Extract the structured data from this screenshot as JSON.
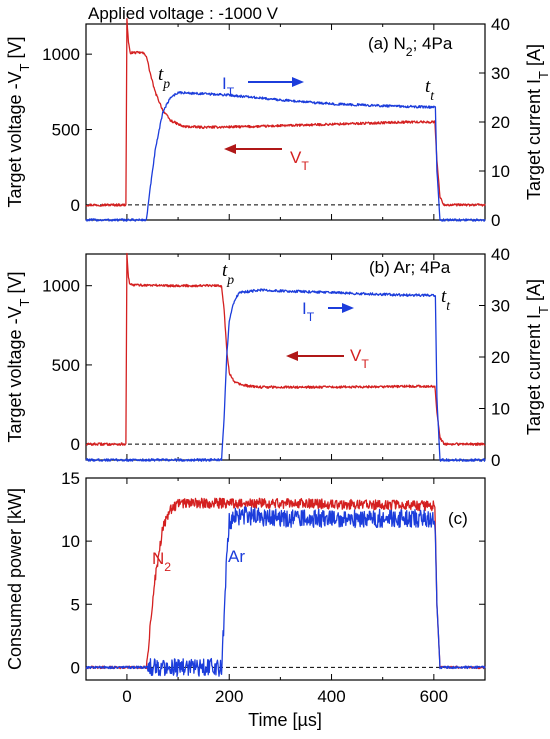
{
  "chart_data": [
    {
      "type": "line",
      "header": "Applied voltage : -1000 V",
      "panel_label": "(a) N",
      "panel_label_sub": "2",
      "panel_label_tail": "; 4Pa",
      "ylabel_left": "Target voltage -V",
      "ylabel_left_sub": "T",
      "ylabel_left_unit": " [V]",
      "ylabel_right": "Target current I",
      "ylabel_right_sub": "T",
      "ylabel_right_unit": " [A]",
      "xlim": [
        -80,
        700
      ],
      "ylim_left": [
        -100,
        1200
      ],
      "ylim_right": [
        0,
        40
      ],
      "y_ticks_left": [
        0,
        500,
        1000
      ],
      "y_ticks_right": [
        0,
        10,
        20,
        30,
        40
      ],
      "x_ticks": [
        0,
        200,
        400,
        600
      ],
      "baseline_dashed": 0,
      "annotations": {
        "tp": "t",
        "tp_sub": "p",
        "tt": "t",
        "tt_sub": "t",
        "it": "I",
        "it_sub": "T",
        "vt": "V",
        "vt_sub": "T"
      },
      "series": [
        {
          "name": "V_T",
          "axis": "left",
          "color": "#d42020",
          "x": [
            -80,
            -2,
            0,
            3,
            6,
            30,
            38,
            45,
            55,
            70,
            85,
            110,
            150,
            250,
            350,
            450,
            550,
            602,
            606,
            612,
            620,
            700
          ],
          "y": [
            0,
            0,
            1230,
            1080,
            1010,
            1010,
            990,
            880,
            750,
            630,
            560,
            520,
            515,
            520,
            530,
            540,
            550,
            550,
            300,
            50,
            0,
            0
          ]
        },
        {
          "name": "I_T",
          "axis": "right",
          "color": "#1c3ddb",
          "x": [
            -80,
            38,
            45,
            55,
            70,
            85,
            100,
            200,
            300,
            400,
            500,
            603,
            606,
            612,
            700
          ],
          "y": [
            0,
            0,
            6,
            14,
            22,
            25,
            26,
            25.5,
            24.5,
            23.7,
            23.3,
            23,
            10,
            0,
            0
          ]
        }
      ]
    },
    {
      "type": "line",
      "panel_label": "(b) Ar; 4Pa",
      "ylabel_left": "Target voltage -V",
      "ylabel_left_sub": "T",
      "ylabel_left_unit": " [V]",
      "ylabel_right": "Target current I",
      "ylabel_right_sub": "T",
      "ylabel_right_unit": " [A]",
      "xlim": [
        -80,
        700
      ],
      "ylim_left": [
        -100,
        1200
      ],
      "ylim_right": [
        0,
        40
      ],
      "y_ticks_left": [
        0,
        500,
        1000
      ],
      "y_ticks_right": [
        0,
        10,
        20,
        30,
        40
      ],
      "x_ticks": [
        0,
        200,
        400,
        600
      ],
      "baseline_dashed": 0,
      "annotations": {
        "tp": "t",
        "tp_sub": "p",
        "tt": "t",
        "tt_sub": "t",
        "it": "I",
        "it_sub": "T",
        "vt": "V",
        "vt_sub": "T"
      },
      "series": [
        {
          "name": "V_T",
          "axis": "left",
          "color": "#d42020",
          "x": [
            -80,
            -2,
            0,
            3,
            6,
            100,
            185,
            190,
            195,
            200,
            210,
            230,
            260,
            400,
            550,
            602,
            606,
            612,
            620,
            700
          ],
          "y": [
            0,
            0,
            1200,
            1050,
            1005,
            1000,
            1000,
            850,
            600,
            450,
            390,
            370,
            360,
            360,
            365,
            365,
            200,
            40,
            0,
            0
          ]
        },
        {
          "name": "I_T",
          "axis": "right",
          "color": "#1c3ddb",
          "x": [
            -80,
            185,
            190,
            195,
            200,
            210,
            220,
            260,
            400,
            550,
            603,
            606,
            612,
            700
          ],
          "y": [
            0,
            0,
            8,
            20,
            27,
            31,
            32.5,
            33,
            32.5,
            32,
            32,
            12,
            0,
            0
          ]
        }
      ]
    },
    {
      "type": "line",
      "panel_label": "(c)",
      "ylabel": "Consumed power [kW]",
      "xlabel": "Time [µs]",
      "xlim": [
        -80,
        700
      ],
      "ylim": [
        -1,
        15
      ],
      "y_ticks": [
        0,
        5,
        10,
        15
      ],
      "x_ticks": [
        0,
        200,
        400,
        600
      ],
      "baseline_dashed": 0,
      "series": [
        {
          "name": "N",
          "name_sub": "2",
          "color": "#d42020",
          "x": [
            -80,
            38,
            45,
            55,
            70,
            85,
            100,
            150,
            300,
            450,
            602,
            606,
            612,
            700
          ],
          "y": [
            0,
            0,
            3,
            7,
            11,
            12.5,
            13,
            13,
            13,
            12.9,
            12.8,
            5,
            0,
            0
          ]
        },
        {
          "name": "Ar",
          "color": "#1c3ddb",
          "x": [
            -80,
            185,
            190,
            195,
            200,
            210,
            230,
            300,
            450,
            602,
            606,
            612,
            700
          ],
          "y": [
            0,
            0,
            4,
            9,
            11.5,
            12,
            12,
            11.8,
            11.8,
            11.8,
            5,
            0,
            0
          ]
        }
      ]
    }
  ]
}
